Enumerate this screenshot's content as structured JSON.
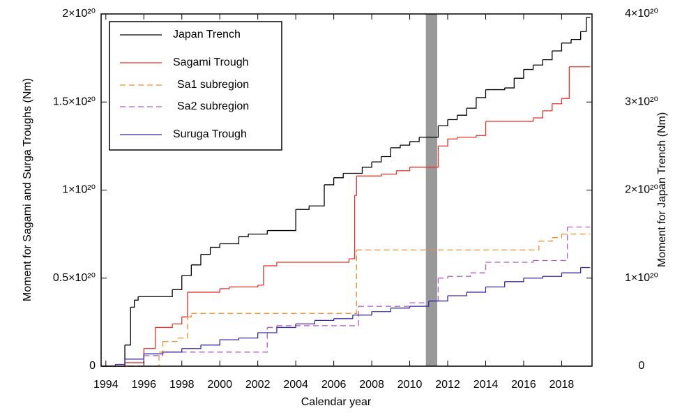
{
  "chart_data": {
    "type": "step",
    "xlabel": "Calendar year",
    "ylabel": "Moment for Sagami and Surga Troughs (Nm)",
    "y2label": "Moment for Japan Trench (Nm)",
    "xlim": [
      1993.75,
      2019.6
    ],
    "xticks": [
      1994,
      1996,
      1998,
      2000,
      2002,
      2004,
      2006,
      2008,
      2010,
      2012,
      2014,
      2016,
      2018
    ],
    "ylim": [
      0,
      2e+20
    ],
    "yticks": [
      0,
      {
        "value": 5e+19,
        "label": "0.5×10²⁰"
      },
      {
        "value": 1e+20,
        "label": "1×10²⁰"
      },
      {
        "value": 1.5e+20,
        "label": "1.5×10²⁰"
      },
      {
        "value": 2e+20,
        "label": "2×10²⁰"
      }
    ],
    "y2lim": [
      0,
      4e+20
    ],
    "y2ticks": [
      0,
      {
        "value": 1e+20,
        "label": "1×10²⁰"
      },
      {
        "value": 2e+20,
        "label": "2×10²⁰"
      },
      {
        "value": 3e+20,
        "label": "3×10²⁰"
      },
      {
        "value": 4e+20,
        "label": "4×10²⁰"
      }
    ],
    "highlight": {
      "xrange": [
        2010.85,
        2011.45
      ],
      "color": "#999999"
    },
    "legend": "upper left",
    "series": [
      {
        "name": "Japan Trench",
        "color": "#000000",
        "dashed": false,
        "axis": "y2",
        "x": [
          1993.75,
          1995.0,
          1995.3,
          1995.5,
          1995.7,
          1997.5,
          1998,
          1998.5,
          1999,
          1999.5,
          2000,
          2001,
          2001.5,
          2002.5,
          2004,
          2004.7,
          2005.5,
          2006,
          2006.5,
          2007.5,
          2008,
          2008.5,
          2009,
          2009.5,
          2010,
          2010.5,
          2011.5,
          2012,
          2012.5,
          2013,
          2013.5,
          2014,
          2015,
          2015.5,
          2016,
          2016.5,
          2017,
          2017.5,
          2018,
          2018.5,
          2019,
          2019.3,
          2019.5
        ],
        "values": [
          0,
          2.4e+19,
          6.7e+19,
          7.5e+19,
          7.9e+19,
          8.7e+19,
          1.03e+20,
          1.15e+20,
          1.27e+20,
          1.35e+20,
          1.39e+20,
          1.47e+20,
          1.5e+20,
          1.54e+20,
          1.78e+20,
          1.82e+20,
          2.06e+20,
          2.14e+20,
          2.19e+20,
          2.26e+20,
          2.32e+20,
          2.38e+20,
          2.48e+20,
          2.51e+20,
          2.55e+20,
          2.6e+20,
          2.73e+20,
          2.8e+20,
          2.85e+20,
          2.93e+20,
          3.05e+20,
          3.14e+20,
          3.16e+20,
          3.27e+20,
          3.37e+20,
          3.42e+20,
          3.48e+20,
          3.58e+20,
          3.67e+20,
          3.71e+20,
          3.8e+20,
          3.96e+20,
          3.96e+20
        ]
      },
      {
        "name": "Sagami Trough",
        "color": "#e8322a",
        "dashed": false,
        "x": [
          1993.75,
          1995,
          1996,
          1996.6,
          1997.5,
          1998,
          1998.3,
          2000,
          2000.5,
          2002,
          2002.3,
          2003,
          2006.8,
          2007.1,
          2007.2,
          2008.5,
          2009.3,
          2010,
          2011.5,
          2012,
          2012.5,
          2013.5,
          2014,
          2016.5,
          2017,
          2017.5,
          2018,
          2018.4,
          2019.5
        ],
        "values": [
          0,
          2e+18,
          1e+19,
          2.2e+19,
          2.4e+19,
          2.8e+19,
          4.2e+19,
          4.4e+19,
          4.5e+19,
          4.6e+19,
          5.7e+19,
          5.9e+19,
          6.1e+19,
          9.7e+19,
          1.08e+20,
          1.09e+20,
          1.11e+20,
          1.13e+20,
          1.25e+20,
          1.29e+20,
          1.3e+20,
          1.31e+20,
          1.39e+20,
          1.41e+20,
          1.45e+20,
          1.49e+20,
          1.52e+20,
          1.7e+20,
          1.7e+20
        ]
      },
      {
        "name": "Sa1 subregion",
        "color": "#f28c28",
        "dashed": true,
        "x": [
          1993.75,
          1996.8,
          1997,
          1997.8,
          1998.3,
          1998.5,
          2007.2,
          2016.8,
          2017.5,
          2018,
          2019.5
        ],
        "values": [
          0,
          8e+18,
          1.4e+19,
          1.6e+19,
          2.8e+19,
          3e+19,
          6.6e+19,
          7.1e+19,
          7.3e+19,
          7.5e+19,
          7.5e+19
        ]
      },
      {
        "name": "Sa2 subregion",
        "color": "#b05cc0",
        "dashed": true,
        "x": [
          1993.75,
          1996,
          1997,
          2002.5,
          2003,
          2007.3,
          2010,
          2011,
          2011.5,
          2012,
          2013.2,
          2014,
          2016.5,
          2018.3,
          2019.5
        ],
        "values": [
          0,
          6e+18,
          8e+18,
          2.2e+19,
          2.3e+19,
          3.4e+19,
          3.6e+19,
          3.7e+19,
          5e+19,
          5.1e+19,
          5.3e+19,
          5.9e+19,
          6e+19,
          7.9e+19,
          7.9e+19
        ]
      },
      {
        "name": "Suruga Trough",
        "color": "#3a2aa0",
        "dashed": false,
        "x": [
          1993.75,
          1994.5,
          1995,
          1996,
          1997,
          1998,
          1999,
          2000,
          2001,
          2002,
          2003,
          2004,
          2005,
          2006,
          2007,
          2008,
          2009,
          2010,
          2011,
          2012,
          2013,
          2014,
          2015,
          2016,
          2017,
          2018,
          2019,
          2019.5
        ],
        "values": [
          0,
          1e+18,
          4e+18,
          7e+18,
          8e+18,
          1e+19,
          1.2e+19,
          1.5e+19,
          1.6e+19,
          1.9e+19,
          2.2e+19,
          2.4e+19,
          2.6e+19,
          2.7e+19,
          2.9e+19,
          3.1e+19,
          3.3e+19,
          3.4e+19,
          3.7e+19,
          4e+19,
          4.2e+19,
          4.5e+19,
          4.8e+19,
          5e+19,
          5.1e+19,
          5.3e+19,
          5.6e+19,
          5.6e+19
        ]
      }
    ]
  }
}
